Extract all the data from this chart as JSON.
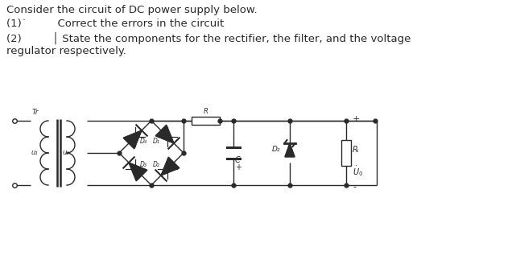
{
  "text_line1": "Consider the circuit of DC power supply below.",
  "text_line2": "(1)˙         Correct the errors in the circuit",
  "text_line3": "(2)         │ State the components for the rectifier, the filter, and the voltage",
  "text_line4": "regulator respectively.",
  "bg_color": "#ffffff",
  "line_color": "#2a2a2a",
  "font_size_text": 9.5,
  "label_Tr": "Tr",
  "label_R": "R",
  "label_C": "C",
  "label_Dz": "D₂",
  "label_RL": "Rₗ",
  "label_u1": "u₁",
  "label_u2": "u₂",
  "label_D4": "D₄",
  "label_D1": "D₁",
  "label_D3": "D₃",
  "label_D2": "D₂",
  "label_Uo": "Ṥ₀",
  "label_plus": "+",
  "label_minus": "-"
}
